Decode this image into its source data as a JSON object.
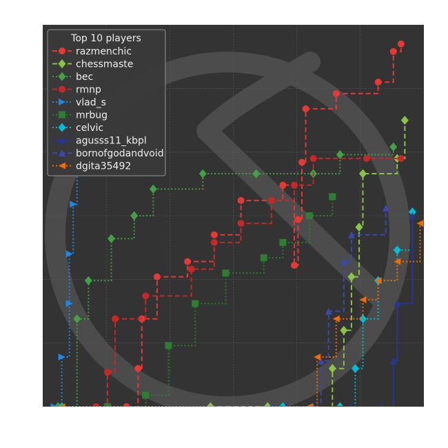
{
  "chart_data": {
    "type": "line",
    "title": "",
    "xlabel": "",
    "ylabel": "",
    "xlim": [
      0,
      100
    ],
    "ylim": [
      0,
      100
    ],
    "grid": true,
    "legend": {
      "title": "Top 10 players",
      "placement": "top-left"
    },
    "series": [
      {
        "name": "razmenchic",
        "color": "#e53935",
        "marker": "circle",
        "dash": "dash",
        "points": [
          [
            22,
            0
          ],
          [
            25,
            10
          ],
          [
            26,
            23
          ],
          [
            30,
            34
          ],
          [
            38,
            38
          ],
          [
            45,
            45
          ],
          [
            52,
            54
          ],
          [
            63,
            58
          ],
          [
            66,
            37
          ],
          [
            67,
            49
          ],
          [
            68,
            64
          ],
          [
            69,
            78
          ],
          [
            77,
            82
          ],
          [
            88,
            85
          ],
          [
            92,
            93
          ],
          [
            94,
            95
          ]
        ]
      },
      {
        "name": "chessmaste",
        "color": "#8bc34a",
        "marker": "diamond",
        "dash": "dash",
        "points": [
          [
            44,
            0
          ],
          [
            59,
            0
          ],
          [
            76,
            10
          ],
          [
            79,
            20
          ],
          [
            81,
            34
          ],
          [
            83,
            47
          ],
          [
            84,
            61
          ],
          [
            93,
            65
          ],
          [
            95,
            75
          ]
        ]
      },
      {
        "name": "bec",
        "color": "#43a047",
        "marker": "diamond",
        "dash": "dot",
        "points": [
          [
            4,
            0
          ],
          [
            9,
            23
          ],
          [
            12,
            33
          ],
          [
            18,
            44
          ],
          [
            24,
            50
          ],
          [
            29,
            57
          ],
          [
            42,
            61
          ],
          [
            56,
            61
          ],
          [
            71,
            61
          ],
          [
            78,
            66
          ],
          [
            92,
            68
          ]
        ]
      },
      {
        "name": "rmnp",
        "color": "#c62828",
        "marker": "circle",
        "dash": "dash",
        "points": [
          [
            14,
            0
          ],
          [
            17,
            9
          ],
          [
            19,
            23
          ],
          [
            27,
            29
          ],
          [
            39,
            36
          ],
          [
            45,
            43
          ],
          [
            52,
            48
          ],
          [
            60,
            54
          ],
          [
            66,
            58
          ],
          [
            71,
            65
          ],
          [
            85,
            65
          ],
          [
            94,
            65
          ]
        ]
      },
      {
        "name": "vlad_s",
        "color": "#1e88e5",
        "marker": "triangle-right",
        "dash": "dot",
        "points": [
          [
            3,
            0
          ],
          [
            5,
            13
          ],
          [
            7,
            27
          ],
          [
            7,
            40
          ],
          [
            8,
            53
          ],
          [
            9,
            66
          ]
        ]
      },
      {
        "name": "mrbug",
        "color": "#2e7d32",
        "marker": "square",
        "dash": "dot",
        "points": [
          [
            17,
            0
          ],
          [
            27,
            3
          ],
          [
            33,
            16
          ],
          [
            40,
            27
          ],
          [
            48,
            35
          ],
          [
            58,
            39
          ],
          [
            63,
            43
          ],
          [
            70,
            50
          ],
          [
            76,
            55
          ]
        ]
      },
      {
        "name": "celvic",
        "color": "#00bcd4",
        "marker": "diamond",
        "dash": "dot",
        "points": [
          [
            5,
            0
          ],
          [
            63,
            0
          ],
          [
            78,
            0
          ],
          [
            82,
            10
          ],
          [
            84,
            23
          ],
          [
            88,
            33
          ],
          [
            93,
            41
          ],
          [
            97,
            51
          ]
        ]
      },
      {
        "name": "agusss11_kbpl",
        "color": "#283593",
        "marker": "triangle-up",
        "dash": "solid",
        "points": [
          [
            64,
            0
          ],
          [
            81,
            0
          ],
          [
            89,
            0
          ],
          [
            92,
            12
          ],
          [
            93,
            27
          ],
          [
            97,
            50
          ]
        ]
      },
      {
        "name": "bornofgodandvoid",
        "color": "#3949ab",
        "marker": "triangle-up",
        "dash": "dash",
        "points": [
          [
            60,
            0
          ],
          [
            71,
            0
          ],
          [
            73,
            12
          ],
          [
            75,
            25
          ],
          [
            79,
            38
          ],
          [
            81,
            45
          ],
          [
            90,
            52
          ]
        ]
      },
      {
        "name": "dgita35492",
        "color": "#ef6c00",
        "marker": "triangle-left",
        "dash": "dot",
        "points": [
          [
            5,
            0
          ],
          [
            70,
            0
          ],
          [
            72,
            13
          ],
          [
            77,
            23
          ],
          [
            84,
            28
          ],
          [
            88,
            33
          ],
          [
            93,
            38
          ],
          [
            99,
            48
          ]
        ]
      }
    ]
  }
}
